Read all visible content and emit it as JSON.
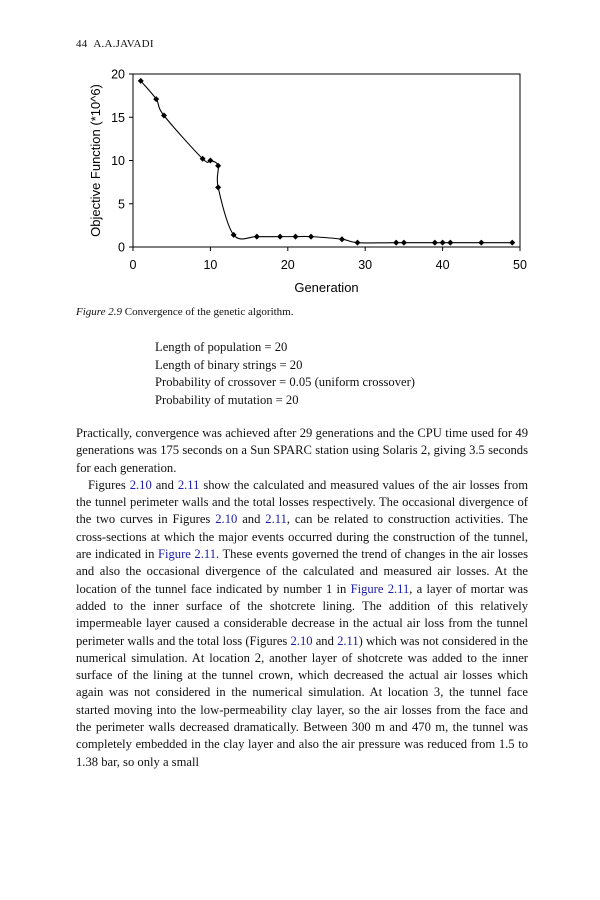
{
  "page": {
    "number": "44",
    "author": "A.A.JAVADI"
  },
  "figure": {
    "label": "Figure 2.9",
    "caption": "Convergence of the genetic algorithm."
  },
  "chart_data": {
    "type": "line",
    "xlabel": "Generation",
    "ylabel": "Objective Function (*10^6)",
    "xlim": [
      0,
      50
    ],
    "ylim": [
      0,
      20
    ],
    "xticks": [
      "0",
      "10",
      "20",
      "30",
      "40",
      "50"
    ],
    "yticks": [
      "0",
      "5",
      "10",
      "15",
      "20"
    ],
    "grid": false,
    "legend": "none",
    "series": [
      {
        "color": "#000000",
        "points": [
          [
            1,
            19.2
          ],
          [
            3,
            17.1
          ],
          [
            4,
            15.2
          ],
          [
            9,
            10.2
          ],
          [
            10,
            10.0
          ],
          [
            11,
            9.4
          ],
          [
            11,
            6.9
          ],
          [
            13,
            1.4
          ],
          [
            16,
            1.2
          ],
          [
            19,
            1.2
          ],
          [
            21,
            1.2
          ],
          [
            23,
            1.2
          ],
          [
            27,
            0.9
          ],
          [
            29,
            0.5
          ],
          [
            34,
            0.5
          ],
          [
            35,
            0.5
          ],
          [
            39,
            0.5
          ],
          [
            40,
            0.5
          ],
          [
            41,
            0.5
          ],
          [
            45,
            0.5
          ],
          [
            49,
            0.5
          ]
        ]
      }
    ]
  },
  "params": [
    "Length of population = 20",
    "Length of binary strings = 20",
    "Probability of crossover = 0.05 (uniform crossover)",
    "Probability of mutation = 20"
  ],
  "body": {
    "p1": "Practically, convergence was achieved after 29 generations and the CPU time used for 49 generations was 175 seconds on a Sun SPARC station using Solaris 2, giving 3.5 seconds for each generation.",
    "p2_s1": "Figures",
    "ref_2_10": "2.10",
    "and": "and",
    "ref_2_11": "2.11",
    "p2_s2": "show the calculated and measured values of the air losses from the tunnel perimeter walls and the total losses respectively. The occasional divergence of the two curves in Figures",
    "p2_s3": ", can be related to construction activities. The cross-sections at which the major events occurred during the construction of the tunnel, are indicated in",
    "ref_figure_2_11": "Figure 2.11",
    "p2_s4": ". These events governed the trend of changes in the air losses and also the occasional divergence of the calculated and measured air losses. At the location of the tunnel face indicated by number 1 in",
    "p2_s5": ", a layer of mortar was added to the inner surface of the shotcrete lining. The addition of this relatively impermeable layer caused a considerable decrease in the actual air loss from the tunnel perimeter walls and the total loss (Figures",
    "p2_s6": ") which was not considered in the numerical simulation. At location 2, another layer of shotcrete was added to the inner surface of the lining at the tunnel crown, which decreased the actual air losses which again was not considered in the numerical simulation. At location 3, the tunnel face started moving into the low-permeability clay layer, so the air losses from the face and the perimeter walls decreased dramatically. Between 300 m and 470 m, the tunnel was completely embedded in the clay layer and also the air pressure was reduced from 1.5 to 1.38 bar, so only a small"
  }
}
